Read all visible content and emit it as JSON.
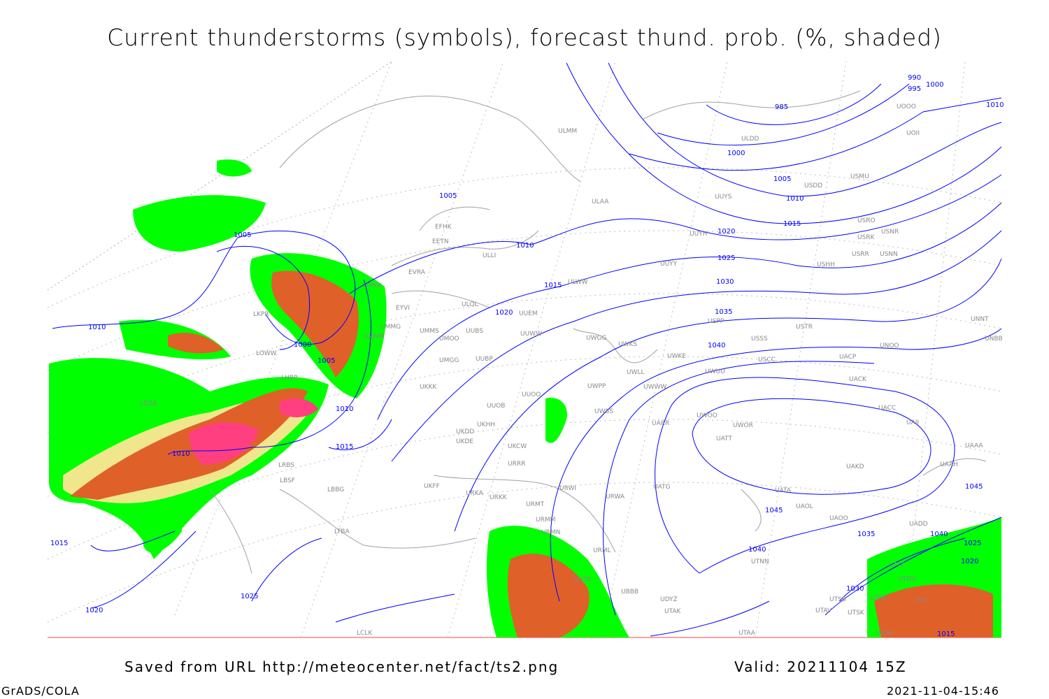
{
  "title": "Current thunderstorms (symbols), forecast thund. prob. (%, shaded)",
  "footer": {
    "source": "Saved from URL http://meteocenter.net/fact/ts2.png",
    "valid": "Valid: 20211104 15Z",
    "software": "GrADS/COLA",
    "timestamp": "2021-11-04-15:46"
  },
  "colors": {
    "isobar": "#0000ff",
    "coast": "#a0a0a0",
    "prob_low": "#00ff00",
    "prob_mid": "#f0e68c",
    "prob_high": "#e0602a",
    "prob_max": "#ff3f7f"
  },
  "isobar_labels": [
    "985",
    "990",
    "995",
    "1000",
    "1000",
    "1005",
    "1010",
    "1015",
    "1020",
    "1025",
    "1030",
    "1035",
    "1040",
    "1045",
    "1005",
    "1005",
    "1010",
    "1000",
    "1005",
    "1010",
    "1015",
    "1010",
    "1010",
    "1015",
    "1020",
    "1020",
    "1025",
    "1040",
    "1045",
    "1035",
    "1040",
    "1025",
    "1020",
    "1030",
    "1015",
    "1015",
    "1010"
  ],
  "stations": [
    "ULMM",
    "ULAA",
    "EFHK",
    "EETN",
    "ULLI",
    "EVRA",
    "ULOL",
    "UUEM",
    "UUWW",
    "UMMS",
    "UMOO",
    "UUBS",
    "UMGG",
    "UUBP",
    "UKKK",
    "UUOO",
    "UUOB",
    "UKHH",
    "UKDD",
    "UKDE",
    "UKCW",
    "URRR",
    "UKFF",
    "URKA",
    "URKK",
    "URMT",
    "URMM",
    "URMN",
    "URML",
    "URWI",
    "URWA",
    "UWWW",
    "UWSS",
    "UWPP",
    "UWLL",
    "UWKE",
    "UWGG",
    "UWKS",
    "UUYY",
    "ULWW",
    "UUYH",
    "UUYS",
    "USPP",
    "USSS",
    "USCC",
    "USTR",
    "UWUU",
    "UATT",
    "UATG",
    "UATA",
    "UAOL",
    "UAOO",
    "UADD",
    "UAII",
    "UACC",
    "UACK",
    "UACP",
    "UNOO",
    "UNBB",
    "UNNT",
    "USHH",
    "USRR",
    "USNN",
    "USRK",
    "USRO",
    "USNR",
    "USMU",
    "USDD",
    "UOOO",
    "UOII",
    "ULDD",
    "UMMG",
    "UMKK",
    "EYVI",
    "UMMM",
    "LKPR",
    "LOWW",
    "LHBP",
    "LRBS",
    "LDZA",
    "LBBG",
    "LTBA",
    "UBBB",
    "UGTB",
    "UDYZ",
    "UTAA",
    "UTAK",
    "UTNN",
    "UTDD",
    "UTSS",
    "UTSB",
    "UTSK",
    "UTAV",
    "UTSH",
    "UTTT",
    "OIII",
    "LCLK",
    "LBSF",
    "UWOO",
    "UWOR",
    "UARR",
    "UAKD",
    "UAAH",
    "UAAA"
  ]
}
